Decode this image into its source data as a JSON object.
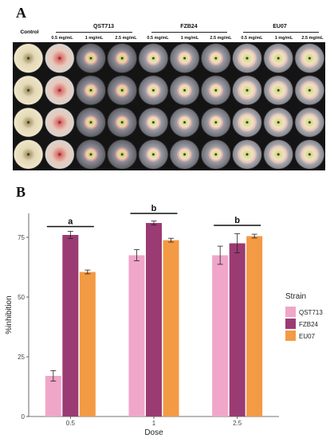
{
  "panel_a": {
    "letter": "A",
    "control_label": "Control",
    "strains": [
      {
        "name": "QST713",
        "doses": [
          "0.5 mg/mL",
          "1 mg/mL",
          "2.5 mg/mL"
        ]
      },
      {
        "name": "FZB24",
        "doses": [
          "0.5 mg/mL",
          "1 mg/mL",
          "2.5 mg/mL"
        ]
      },
      {
        "name": "EU07",
        "doses": [
          "0.5 mg/mL",
          "1 mg/mL",
          "2.5 mg/mL"
        ]
      }
    ],
    "rows": 4
  },
  "panel_b": {
    "letter": "B"
  },
  "chart_data": {
    "type": "bar",
    "title": "",
    "xlabel": "Dose",
    "ylabel": "%inhibition",
    "categories": [
      "0.5",
      "1",
      "2.5"
    ],
    "ylim": [
      0,
      85
    ],
    "yticks": [
      0,
      25,
      50,
      75
    ],
    "grid": false,
    "legend": {
      "title": "Strain",
      "position": "right",
      "entries": [
        "QST713",
        "FZB24",
        "EU07"
      ]
    },
    "series": [
      {
        "name": "QST713",
        "color": "#f0a6c9",
        "values": [
          17,
          67.5,
          67.5
        ],
        "errors": [
          2.2,
          2.3,
          3.8
        ]
      },
      {
        "name": "FZB24",
        "color": "#9b3b73",
        "values": [
          76,
          81,
          72.5
        ],
        "errors": [
          1.5,
          0.8,
          4
        ]
      },
      {
        "name": "EU07",
        "color": "#f39a45",
        "values": [
          60.5,
          73.8,
          75.5
        ],
        "errors": [
          0.8,
          0.8,
          0.8
        ]
      }
    ],
    "significance": [
      {
        "category": "0.5",
        "label": "a",
        "y": 79.5
      },
      {
        "category": "1",
        "label": "b",
        "y": 85
      },
      {
        "category": "2.5",
        "label": "b",
        "y": 80
      }
    ]
  }
}
